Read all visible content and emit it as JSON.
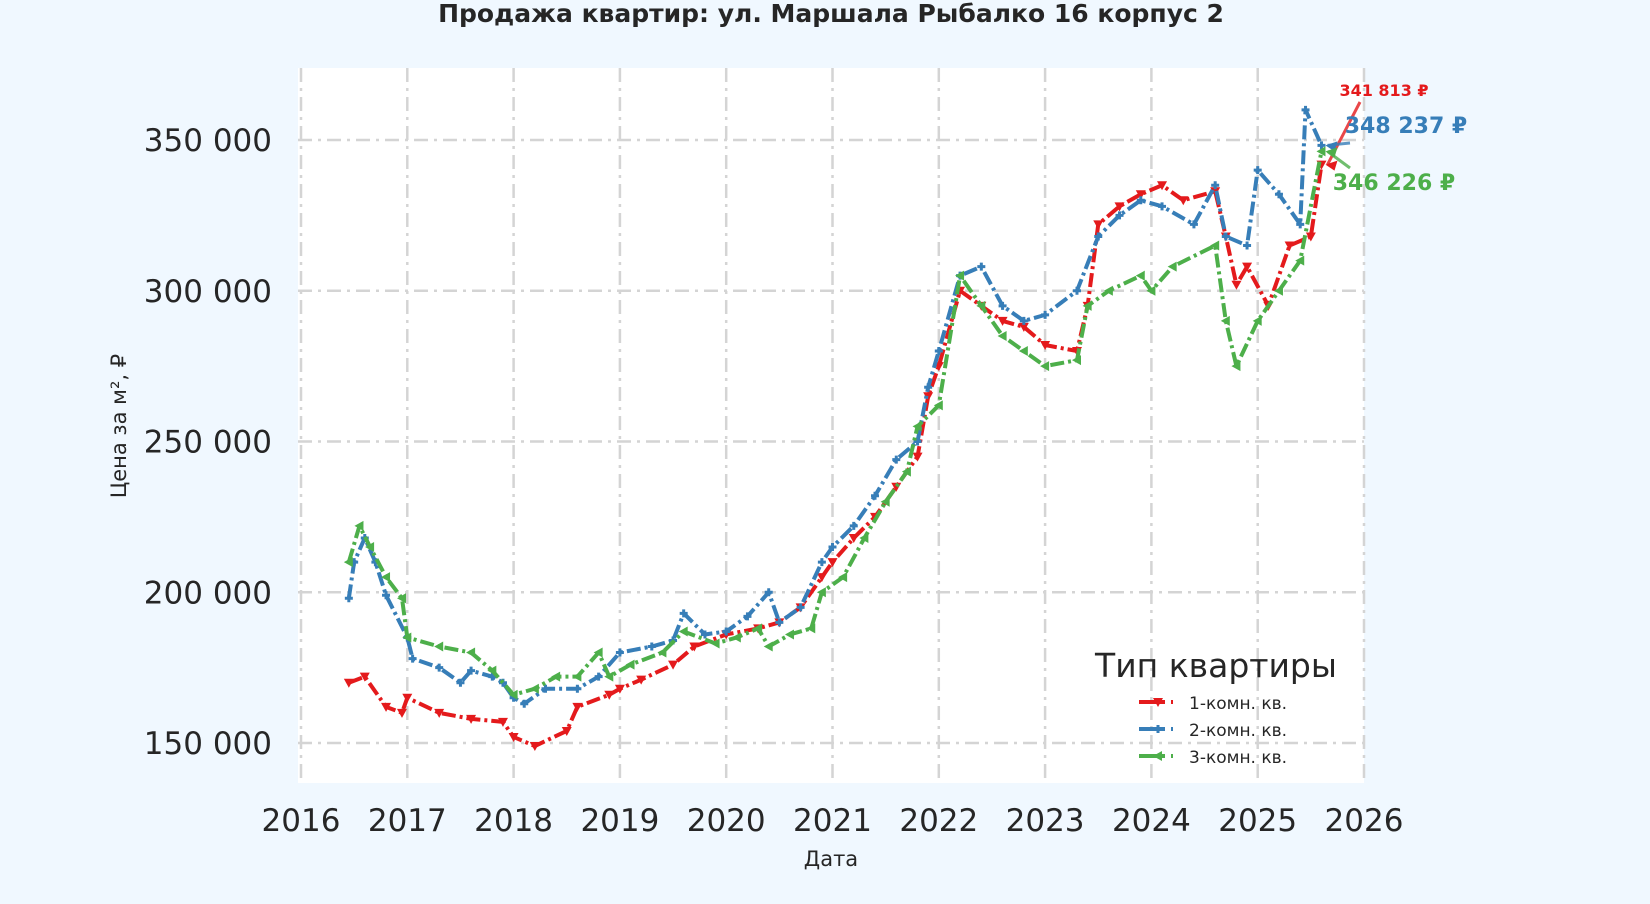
{
  "chart_data": {
    "type": "line",
    "title": "Продажа квартир: ул. Маршала Рыбалко 16 корпус 2",
    "xlabel": "Дата",
    "ylabel": "Цена за м², ₽",
    "xlim": [
      2016,
      2026
    ],
    "ylim": [
      136700,
      374000
    ],
    "x_ticks": [
      "2016",
      "2017",
      "2018",
      "2019",
      "2020",
      "2021",
      "2022",
      "2023",
      "2024",
      "2025",
      "2026"
    ],
    "y_ticks": [
      150000,
      200000,
      250000,
      300000,
      350000
    ],
    "y_tick_labels": [
      "150 000",
      "200 000",
      "250 000",
      "300 000",
      "350 000"
    ],
    "grid": true,
    "legend": {
      "title": "Тип квартиры",
      "placement": "lower-right"
    },
    "series": [
      {
        "name": "1-комн. кв.",
        "color": "#e41a1c",
        "marker": "triangle-down",
        "x": [
          2016.45,
          2016.6,
          2016.8,
          2016.95,
          2017.0,
          2017.3,
          2017.6,
          2017.9,
          2018.0,
          2018.2,
          2018.5,
          2018.6,
          2018.9,
          2019.0,
          2019.2,
          2019.5,
          2019.7,
          2020.0,
          2020.3,
          2020.5,
          2020.7,
          2020.9,
          2021.0,
          2021.2,
          2021.4,
          2021.6,
          2021.8,
          2021.9,
          2022.0,
          2022.2,
          2022.4,
          2022.6,
          2022.8,
          2023.0,
          2023.3,
          2023.4,
          2023.5,
          2023.7,
          2023.9,
          2024.1,
          2024.3,
          2024.6,
          2024.7,
          2024.8,
          2024.9,
          2025.1,
          2025.3,
          2025.5,
          2025.6
        ],
        "values": [
          170000,
          172000,
          162000,
          160000,
          165000,
          160000,
          158000,
          157000,
          152000,
          149000,
          154000,
          162000,
          166000,
          168000,
          171000,
          176000,
          182000,
          186000,
          188000,
          190000,
          195000,
          205000,
          210000,
          218000,
          225000,
          235000,
          245000,
          265000,
          275000,
          300000,
          295000,
          290000,
          288000,
          282000,
          280000,
          295000,
          322000,
          328000,
          332000,
          335000,
          330000,
          333000,
          318000,
          302000,
          308000,
          295000,
          315000,
          318000,
          341813
        ],
        "last_label": "341 813 ₽"
      },
      {
        "name": "2-комн. кв.",
        "color": "#377eb8",
        "marker": "plus",
        "x": [
          2016.45,
          2016.5,
          2016.6,
          2016.7,
          2016.8,
          2017.0,
          2017.05,
          2017.3,
          2017.5,
          2017.6,
          2017.8,
          2017.9,
          2018.0,
          2018.1,
          2018.3,
          2018.6,
          2018.8,
          2019.0,
          2019.3,
          2019.5,
          2019.6,
          2019.8,
          2020.0,
          2020.2,
          2020.4,
          2020.5,
          2020.7,
          2020.9,
          2021.0,
          2021.2,
          2021.4,
          2021.6,
          2021.8,
          2021.9,
          2022.0,
          2022.2,
          2022.4,
          2022.6,
          2022.8,
          2023.0,
          2023.3,
          2023.5,
          2023.7,
          2023.9,
          2024.1,
          2024.4,
          2024.6,
          2024.7,
          2024.9,
          2025.0,
          2025.2,
          2025.4,
          2025.45,
          2025.6
        ],
        "values": [
          198000,
          210000,
          218000,
          210000,
          199000,
          185000,
          178000,
          175000,
          170000,
          174000,
          172000,
          170000,
          165000,
          163000,
          168000,
          168000,
          172000,
          180000,
          182000,
          184000,
          193000,
          186000,
          187000,
          192000,
          200000,
          190000,
          195000,
          210000,
          215000,
          222000,
          232000,
          244000,
          250000,
          268000,
          280000,
          305000,
          308000,
          295000,
          290000,
          292000,
          300000,
          318000,
          325000,
          330000,
          328000,
          322000,
          335000,
          318000,
          315000,
          340000,
          332000,
          322000,
          360000,
          348237
        ],
        "last_label": "348 237 ₽"
      },
      {
        "name": "3-комн. кв.",
        "color": "#4daf4a",
        "marker": "triangle-left",
        "x": [
          2016.45,
          2016.55,
          2016.65,
          2016.8,
          2016.95,
          2017.0,
          2017.3,
          2017.6,
          2017.8,
          2018.0,
          2018.2,
          2018.4,
          2018.6,
          2018.8,
          2018.9,
          2019.1,
          2019.4,
          2019.6,
          2019.9,
          2020.1,
          2020.3,
          2020.4,
          2020.6,
          2020.8,
          2020.9,
          2021.1,
          2021.3,
          2021.5,
          2021.7,
          2021.8,
          2022.0,
          2022.2,
          2022.4,
          2022.6,
          2022.8,
          2023.0,
          2023.3,
          2023.4,
          2023.6,
          2023.9,
          2024.0,
          2024.2,
          2024.6,
          2024.7,
          2024.8,
          2025.0,
          2025.2,
          2025.4,
          2025.6
        ],
        "values": [
          210000,
          222000,
          215000,
          205000,
          198000,
          185000,
          182000,
          180000,
          174000,
          166000,
          168000,
          172000,
          172000,
          180000,
          172000,
          176000,
          180000,
          187000,
          183000,
          185000,
          188000,
          182000,
          186000,
          188000,
          200000,
          205000,
          218000,
          230000,
          240000,
          255000,
          262000,
          305000,
          295000,
          285000,
          280000,
          275000,
          277000,
          295000,
          300000,
          305000,
          300000,
          308000,
          315000,
          290000,
          275000,
          290000,
          300000,
          310000,
          346226
        ],
        "last_label": "346 226 ₽"
      }
    ]
  }
}
